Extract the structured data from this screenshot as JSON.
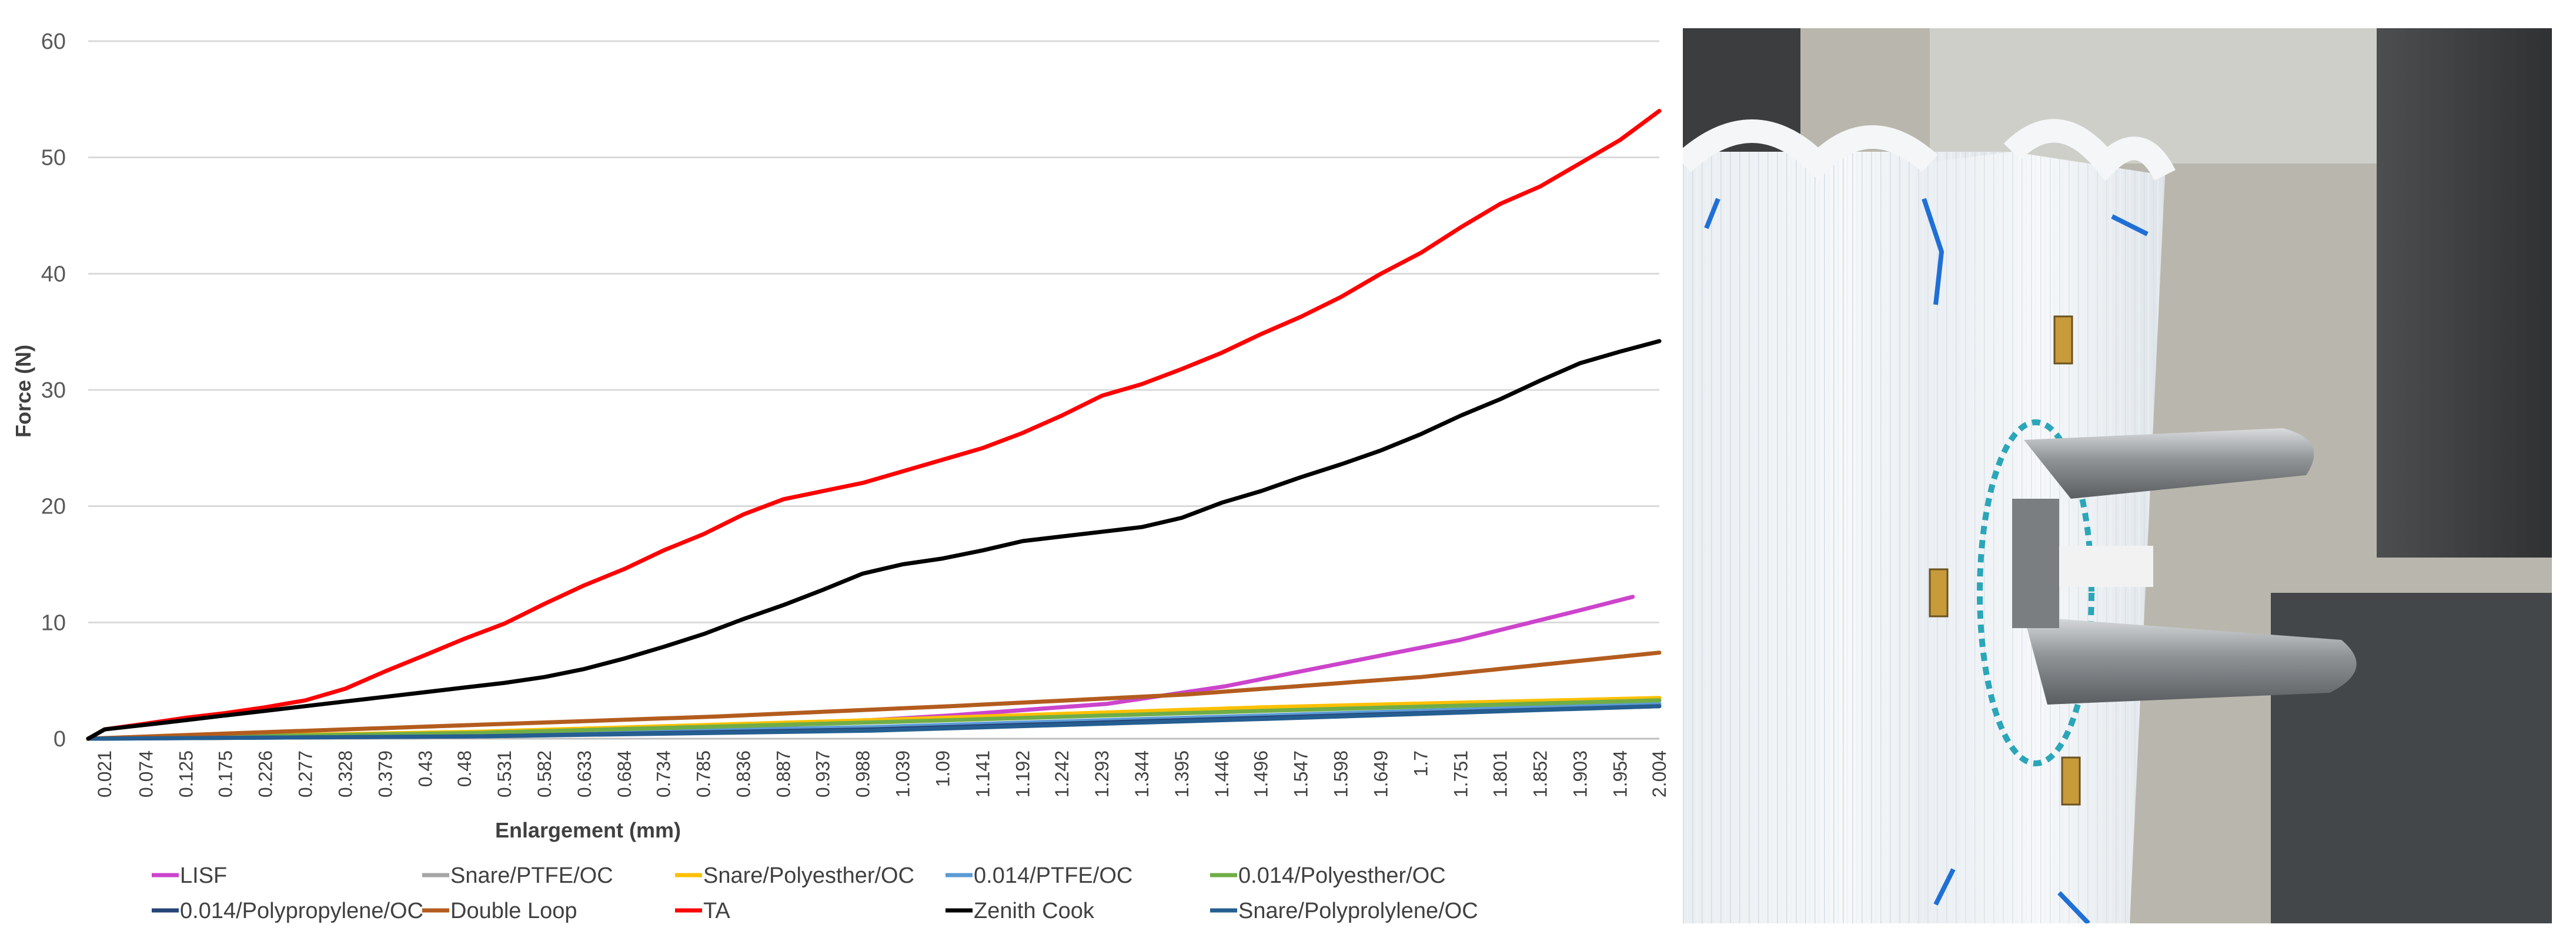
{
  "chart_data": {
    "type": "line",
    "xlabel": "Enlargement (mm)",
    "ylabel": "Force (N)",
    "ylim": [
      0,
      60
    ],
    "yticks": [
      0,
      10,
      20,
      30,
      40,
      50,
      60
    ],
    "xlim": [
      0,
      2.004
    ],
    "xtick_labels": [
      "0.021",
      "0.074",
      "0.125",
      "0.175",
      "0.226",
      "0.277",
      "0.328",
      "0.379",
      "0.43",
      "0.48",
      "0.531",
      "0.582",
      "0.633",
      "0.684",
      "0.734",
      "0.785",
      "0.836",
      "0.887",
      "0.937",
      "0.988",
      "1.039",
      "1.09",
      "1.141",
      "1.192",
      "1.242",
      "1.293",
      "1.344",
      "1.395",
      "1.446",
      "1.496",
      "1.547",
      "1.598",
      "1.649",
      "1.7",
      "1.751",
      "1.801",
      "1.852",
      "1.903",
      "1.954",
      "2.004"
    ],
    "grid": "horizontal",
    "legend_position": "bottom",
    "series": [
      {
        "name": "LISF",
        "color": "#cc44cc",
        "x": [
          0,
          0.3,
          0.6,
          0.9,
          1.1,
          1.3,
          1.45,
          1.6,
          1.75,
          1.9,
          1.97
        ],
        "y": [
          0,
          0.2,
          0.5,
          1.2,
          2.0,
          3.0,
          4.5,
          6.5,
          8.5,
          11.0,
          12.2
        ]
      },
      {
        "name": "Snare/PTFE/OC",
        "color": "#a5a5a5",
        "x": [
          0,
          0.5,
          1.0,
          1.5,
          2.004
        ],
        "y": [
          0,
          0.5,
          1.5,
          2.5,
          3.3
        ]
      },
      {
        "name": "Snare/Polyesther/OC",
        "color": "#ffc000",
        "x": [
          0,
          0.5,
          1.0,
          1.5,
          2.004
        ],
        "y": [
          0,
          0.6,
          1.6,
          2.7,
          3.5
        ]
      },
      {
        "name": "0.014/PTFE/OC",
        "color": "#5b9bd5",
        "x": [
          0,
          0.5,
          1.0,
          1.5,
          2.004
        ],
        "y": [
          0,
          0.3,
          1.0,
          2.0,
          3.0
        ]
      },
      {
        "name": "0.014/Polyesther/OC",
        "color": "#70ad47",
        "x": [
          0,
          0.5,
          1.0,
          1.5,
          2.004
        ],
        "y": [
          0,
          0.5,
          1.4,
          2.4,
          3.3
        ]
      },
      {
        "name": "0.014/Polypropylene/OC",
        "color": "#264478",
        "x": [
          0,
          0.5,
          1.0,
          1.5,
          2.004
        ],
        "y": [
          0,
          0.2,
          0.8,
          1.8,
          2.8
        ]
      },
      {
        "name": "Double Loop",
        "color": "#b35c1e",
        "x": [
          0,
          0.2,
          0.5,
          0.8,
          1.1,
          1.4,
          1.7,
          2.004
        ],
        "y": [
          0,
          0.5,
          1.2,
          1.9,
          2.8,
          3.8,
          5.3,
          7.4
        ]
      },
      {
        "name": "TA",
        "color": "#ff0000",
        "x": [
          0,
          0.021,
          0.074,
          0.125,
          0.175,
          0.226,
          0.277,
          0.328,
          0.379,
          0.43,
          0.48,
          0.531,
          0.582,
          0.633,
          0.684,
          0.734,
          0.785,
          0.836,
          0.887,
          0.937,
          0.988,
          1.039,
          1.09,
          1.141,
          1.192,
          1.242,
          1.293,
          1.344,
          1.395,
          1.446,
          1.496,
          1.547,
          1.598,
          1.649,
          1.7,
          1.751,
          1.801,
          1.852,
          1.903,
          1.954,
          2.004
        ],
        "y": [
          0,
          0.8,
          1.3,
          1.8,
          2.2,
          2.7,
          3.3,
          4.3,
          5.8,
          7.2,
          8.6,
          9.9,
          11.6,
          13.2,
          14.6,
          16.2,
          17.6,
          19.3,
          20.6,
          21.3,
          22.0,
          23.0,
          24.0,
          25.0,
          26.3,
          27.8,
          29.5,
          30.5,
          31.8,
          33.2,
          34.8,
          36.3,
          38.0,
          40.0,
          41.8,
          44.0,
          46.0,
          47.5,
          49.5,
          51.5,
          54.0
        ]
      },
      {
        "name": "Zenith Cook",
        "color": "#000000",
        "x": [
          0,
          0.021,
          0.074,
          0.125,
          0.175,
          0.226,
          0.277,
          0.328,
          0.379,
          0.43,
          0.48,
          0.531,
          0.582,
          0.633,
          0.684,
          0.734,
          0.785,
          0.836,
          0.887,
          0.937,
          0.988,
          1.039,
          1.09,
          1.141,
          1.192,
          1.242,
          1.293,
          1.344,
          1.395,
          1.446,
          1.496,
          1.547,
          1.598,
          1.649,
          1.7,
          1.751,
          1.801,
          1.852,
          1.903,
          1.954,
          2.004
        ],
        "y": [
          0,
          0.8,
          1.2,
          1.6,
          2.0,
          2.4,
          2.8,
          3.2,
          3.6,
          4.0,
          4.4,
          4.8,
          5.3,
          6.0,
          6.9,
          7.9,
          9.0,
          10.3,
          11.5,
          12.8,
          14.2,
          15.0,
          15.5,
          16.2,
          17.0,
          17.4,
          17.8,
          18.2,
          19.0,
          20.3,
          21.3,
          22.5,
          23.6,
          24.8,
          26.2,
          27.8,
          29.2,
          30.8,
          32.3,
          33.3,
          34.2
        ]
      },
      {
        "name": "Snare/Polyprolylene/OC",
        "color": "#255e91",
        "x": [
          0,
          0.5,
          1.0,
          1.5,
          2.004
        ],
        "y": [
          0,
          0.2,
          0.7,
          1.7,
          2.8
        ]
      }
    ]
  }
}
